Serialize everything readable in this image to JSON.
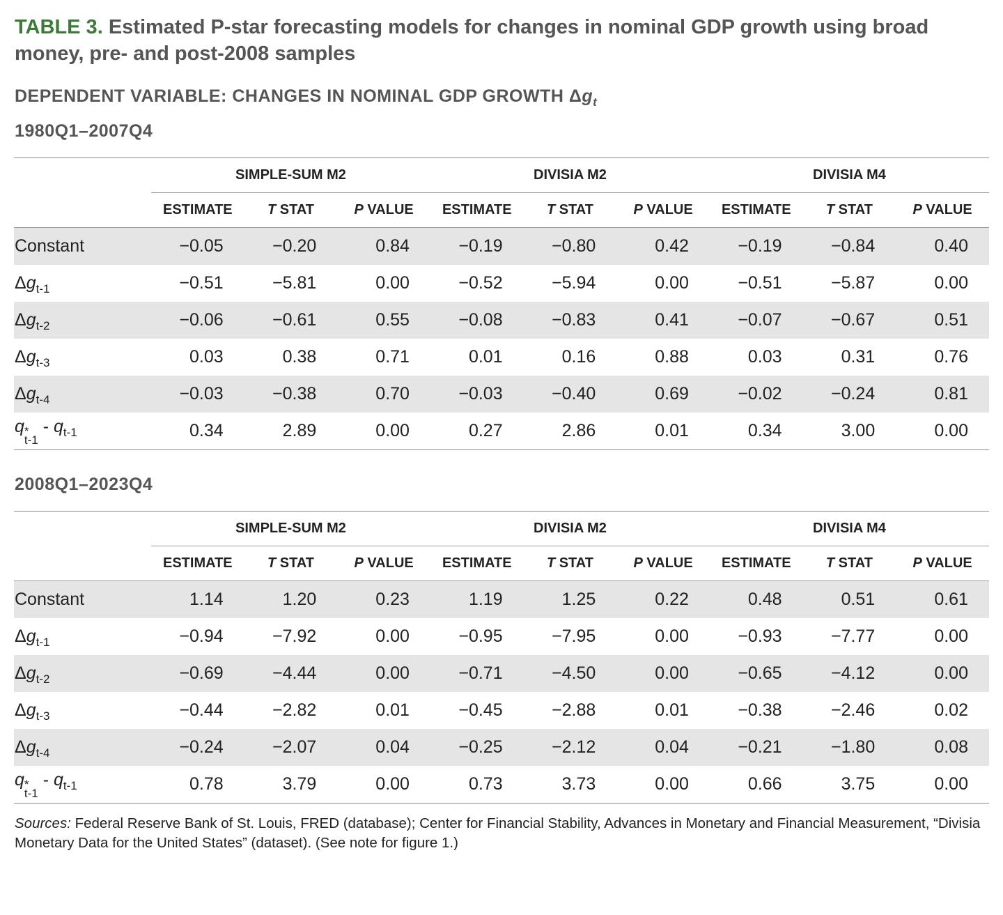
{
  "title": {
    "label": "TABLE 3.",
    "text": "Estimated P-star forecasting models for changes in nominal GDP growth using broad money, pre- and post-2008 samples"
  },
  "subtitle": [
    {
      "text": "DEPENDENT VARIABLE: CHANGES IN NOMINAL GDP GROWTH Δ"
    },
    {
      "italic": "g"
    },
    {
      "sub": "t"
    }
  ],
  "panels": [
    {
      "period": "1980Q1–2007Q4",
      "column_groups": [
        "SIMPLE-SUM M2",
        "DIVISIA M2",
        "DIVISIA M4"
      ],
      "columns": [
        [
          {
            "text": "ESTIMATE"
          }
        ],
        [
          {
            "italic": "T"
          },
          {
            "text": " STAT"
          }
        ],
        [
          {
            "italic": "P"
          },
          {
            "text": " VALUE"
          }
        ],
        [
          {
            "text": "ESTIMATE"
          }
        ],
        [
          {
            "italic": "T"
          },
          {
            "text": " STAT"
          }
        ],
        [
          {
            "italic": "P"
          },
          {
            "text": " VALUE"
          }
        ],
        [
          {
            "text": "ESTIMATE"
          }
        ],
        [
          {
            "italic": "T"
          },
          {
            "text": " STAT"
          }
        ],
        [
          {
            "italic": "P"
          },
          {
            "text": " VALUE"
          }
        ]
      ],
      "rows": [
        {
          "label": [
            {
              "text": "Constant"
            }
          ],
          "values": [
            "−0.05",
            "−0.20",
            "0.84",
            "−0.19",
            "−0.80",
            "0.42",
            "−0.19",
            "−0.84",
            "0.40"
          ]
        },
        {
          "label": [
            {
              "text": "Δ"
            },
            {
              "italic": "g"
            },
            {
              "sub": "t-1"
            }
          ],
          "values": [
            "−0.51",
            "−5.81",
            "0.00",
            "−0.52",
            "−5.94",
            "0.00",
            "−0.51",
            "−5.87",
            "0.00"
          ]
        },
        {
          "label": [
            {
              "text": "Δ"
            },
            {
              "italic": "g"
            },
            {
              "sub": "t-2"
            }
          ],
          "values": [
            "−0.06",
            "−0.61",
            "0.55",
            "−0.08",
            "−0.83",
            "0.41",
            "−0.07",
            "−0.67",
            "0.51"
          ]
        },
        {
          "label": [
            {
              "text": "Δ"
            },
            {
              "italic": "g"
            },
            {
              "sub": "t-3"
            }
          ],
          "values": [
            "0.03",
            "0.38",
            "0.71",
            "0.01",
            "0.16",
            "0.88",
            "0.03",
            "0.31",
            "0.76"
          ]
        },
        {
          "label": [
            {
              "text": "Δ"
            },
            {
              "italic": "g"
            },
            {
              "sub": "t-4"
            }
          ],
          "values": [
            "−0.03",
            "−0.38",
            "0.70",
            "−0.03",
            "−0.40",
            "0.69",
            "−0.02",
            "−0.24",
            "0.81"
          ]
        },
        {
          "label": [
            {
              "italic": "q"
            },
            {
              "sup": "*",
              "sub": "t-1"
            },
            {
              "text": " - "
            },
            {
              "italic": "q"
            },
            {
              "sub": "t-1"
            }
          ],
          "values": [
            "0.34",
            "2.89",
            "0.00",
            "0.27",
            "2.86",
            "0.01",
            "0.34",
            "3.00",
            "0.00"
          ]
        }
      ]
    },
    {
      "period": "2008Q1–2023Q4",
      "column_groups": [
        "SIMPLE-SUM M2",
        "DIVISIA M2",
        "DIVISIA M4"
      ],
      "columns": [
        [
          {
            "text": "ESTIMATE"
          }
        ],
        [
          {
            "italic": "T"
          },
          {
            "text": " STAT"
          }
        ],
        [
          {
            "italic": "P"
          },
          {
            "text": " VALUE"
          }
        ],
        [
          {
            "text": "ESTIMATE"
          }
        ],
        [
          {
            "italic": "T"
          },
          {
            "text": " STAT"
          }
        ],
        [
          {
            "italic": "P"
          },
          {
            "text": " VALUE"
          }
        ],
        [
          {
            "text": "ESTIMATE"
          }
        ],
        [
          {
            "italic": "T"
          },
          {
            "text": " STAT"
          }
        ],
        [
          {
            "italic": "P"
          },
          {
            "text": " VALUE"
          }
        ]
      ],
      "rows": [
        {
          "label": [
            {
              "text": "Constant"
            }
          ],
          "values": [
            "1.14",
            "1.20",
            "0.23",
            "1.19",
            "1.25",
            "0.22",
            "0.48",
            "0.51",
            "0.61"
          ]
        },
        {
          "label": [
            {
              "text": "Δ"
            },
            {
              "italic": "g"
            },
            {
              "sub": "t-1"
            }
          ],
          "values": [
            "−0.94",
            "−7.92",
            "0.00",
            "−0.95",
            "−7.95",
            "0.00",
            "−0.93",
            "−7.77",
            "0.00"
          ]
        },
        {
          "label": [
            {
              "text": "Δ"
            },
            {
              "italic": "g"
            },
            {
              "sub": "t-2"
            }
          ],
          "values": [
            "−0.69",
            "−4.44",
            "0.00",
            "−0.71",
            "−4.50",
            "0.00",
            "−0.65",
            "−4.12",
            "0.00"
          ]
        },
        {
          "label": [
            {
              "text": "Δ"
            },
            {
              "italic": "g"
            },
            {
              "sub": "t-3"
            }
          ],
          "values": [
            "−0.44",
            "−2.82",
            "0.01",
            "−0.45",
            "−2.88",
            "0.01",
            "−0.38",
            "−2.46",
            "0.02"
          ]
        },
        {
          "label": [
            {
              "text": "Δ"
            },
            {
              "italic": "g"
            },
            {
              "sub": "t-4"
            }
          ],
          "values": [
            "−0.24",
            "−2.07",
            "0.04",
            "−0.25",
            "−2.12",
            "0.04",
            "−0.21",
            "−1.80",
            "0.08"
          ]
        },
        {
          "label": [
            {
              "italic": "q"
            },
            {
              "sup": "*",
              "sub": "t-1"
            },
            {
              "text": " - "
            },
            {
              "italic": "q"
            },
            {
              "sub": "t-1"
            }
          ],
          "values": [
            "0.78",
            "3.79",
            "0.00",
            "0.73",
            "3.73",
            "0.00",
            "0.66",
            "3.75",
            "0.00"
          ]
        }
      ]
    }
  ],
  "sources": {
    "label": "Sources:",
    "text": " Federal Reserve Bank of St. Louis, FRED (database); Center for Financial Stability, Advances in Monetary and Financial Measurement, “Divisia Monetary Data for the United States” (dataset). (See note for figure 1.)"
  }
}
